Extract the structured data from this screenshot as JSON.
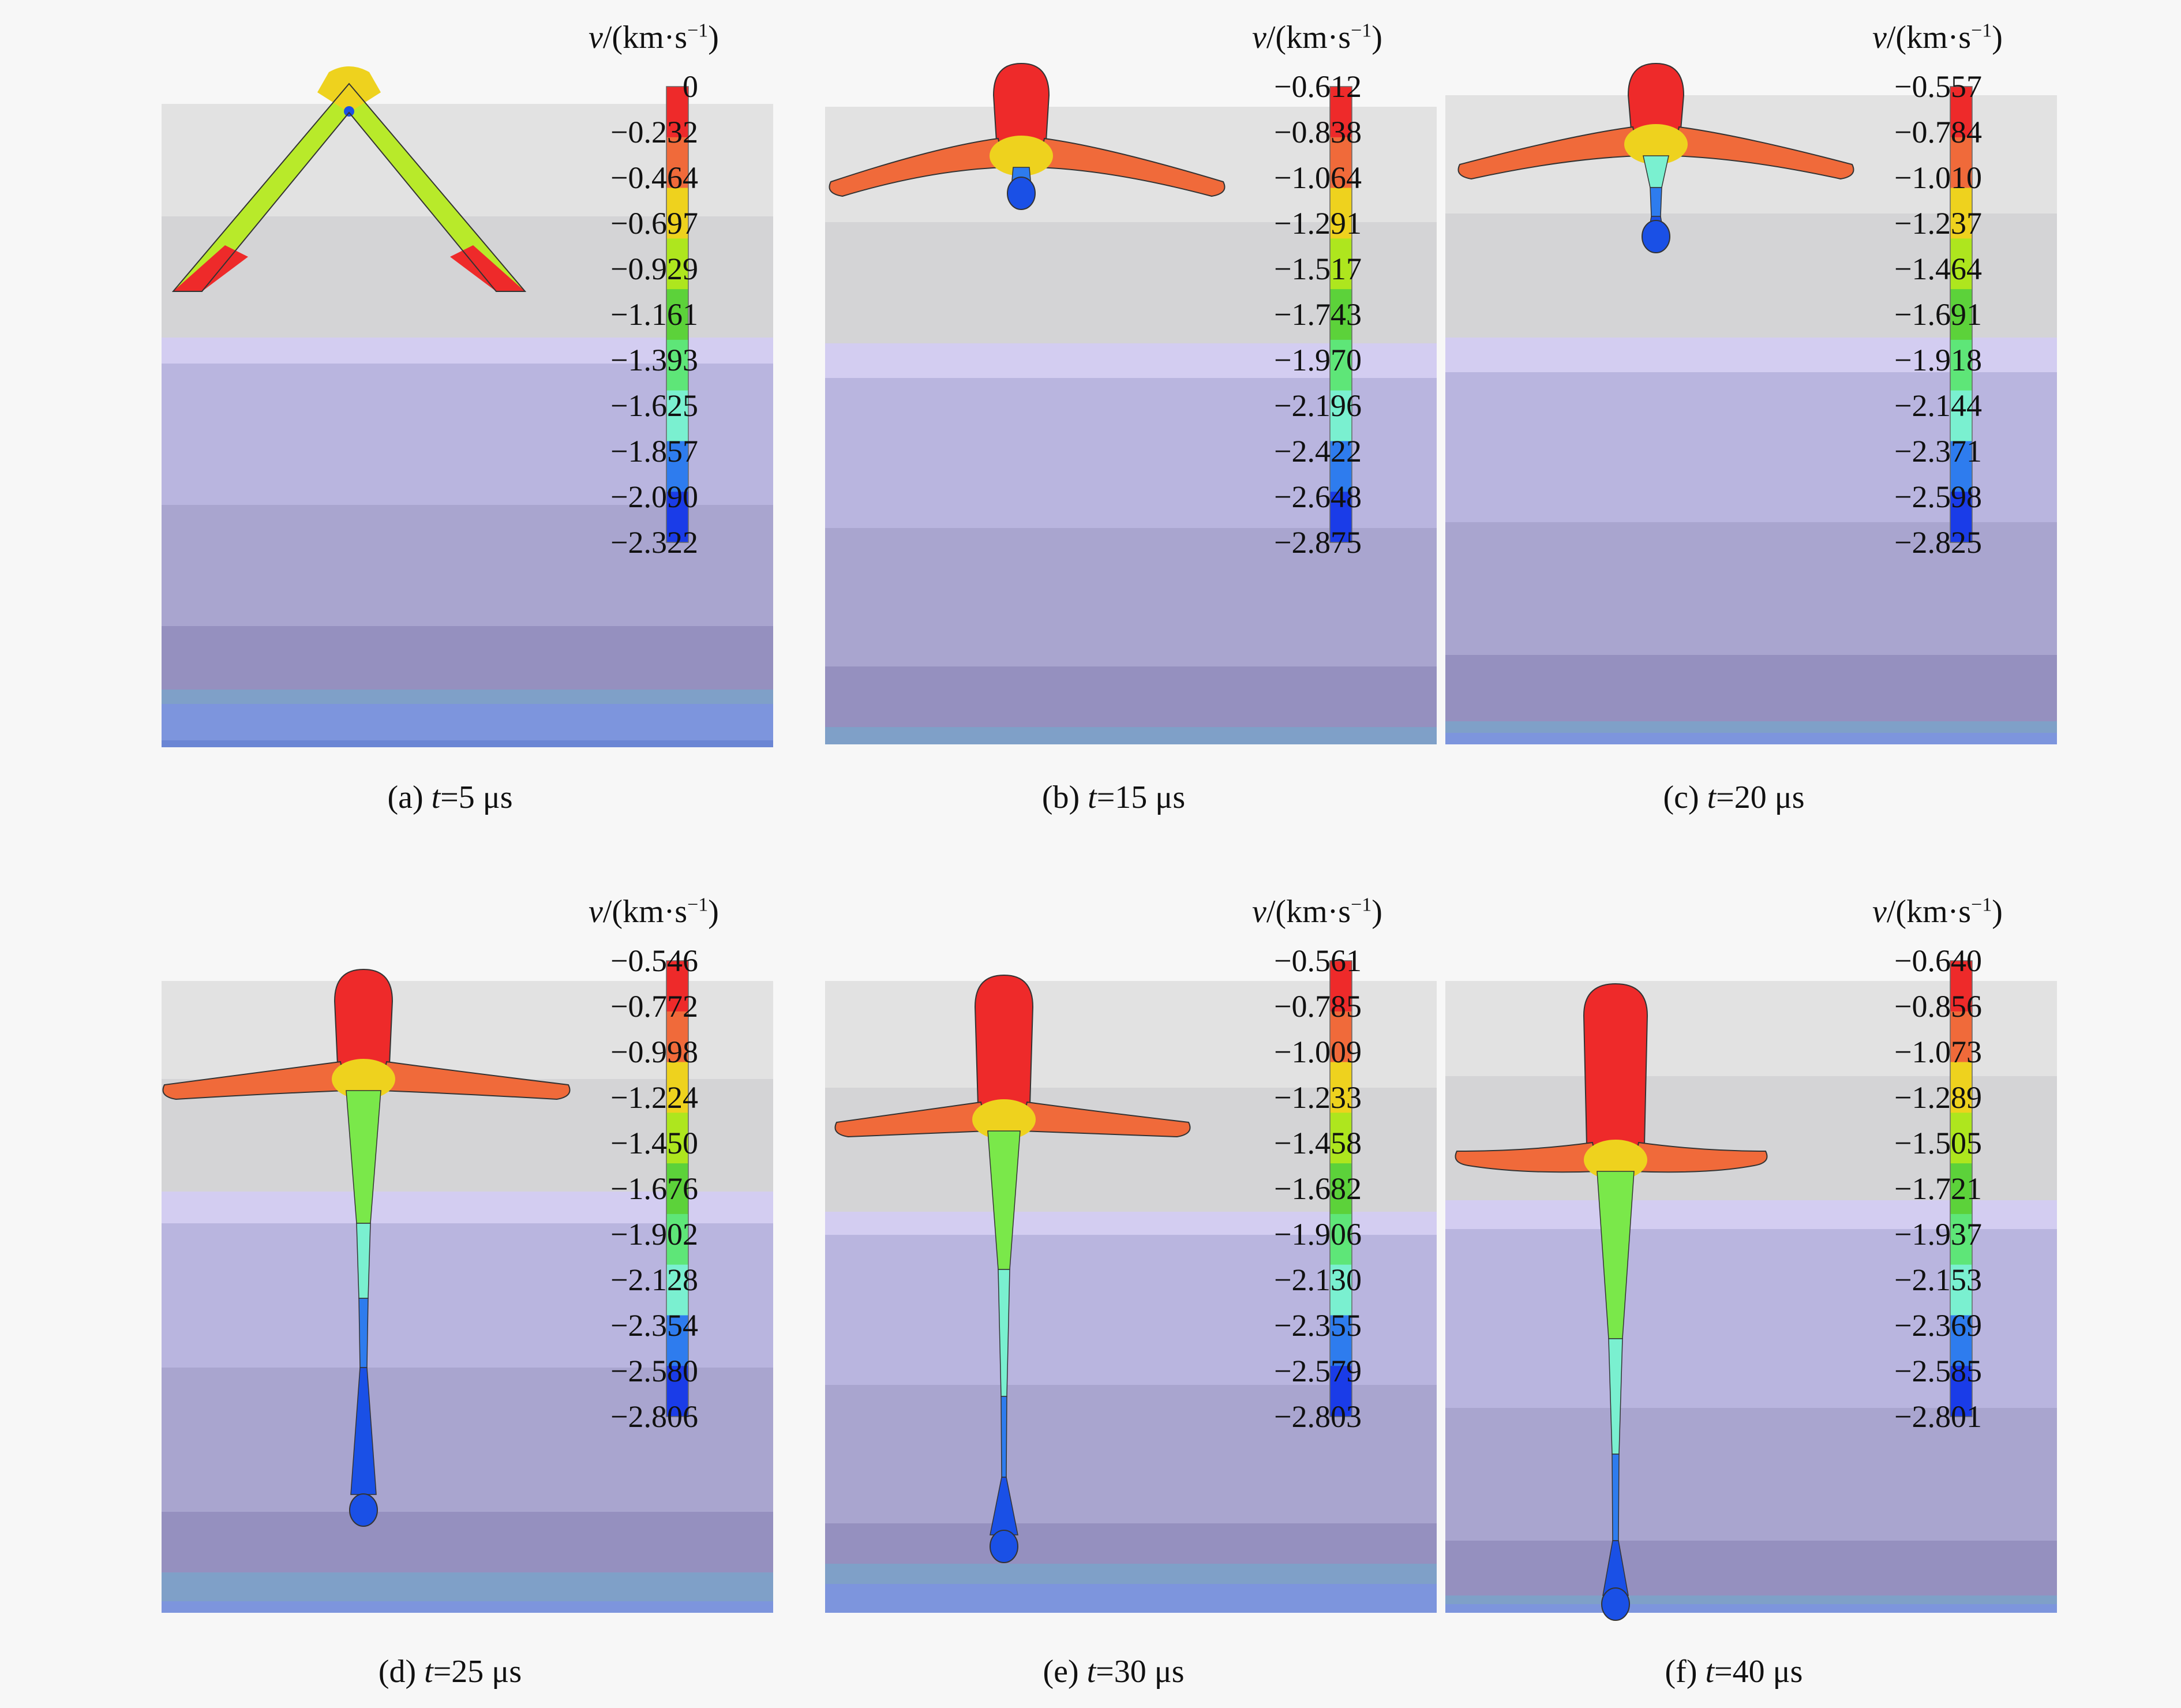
{
  "palette": {
    "legend_colors": [
      "#ee2a2a",
      "#f06a3a",
      "#eed21e",
      "#aee61e",
      "#5cd23a",
      "#5ee678",
      "#7af0d0",
      "#2e7cee",
      "#1a3ce8"
    ],
    "jet_tail_color": "#1a50e6",
    "jet_head_color": "#ee2a2a"
  },
  "panels": [
    {
      "label": "(a)",
      "t_symbol": "t",
      "t_value": "=5 μs",
      "unit_symbol": "v",
      "unit_text": "/(km·s",
      "unit_exp": "−1",
      "unit_close": ")",
      "ticks": [
        "0",
        "−0.232",
        "−0.464",
        "−0.697",
        "−0.929",
        "−1.161",
        "−1.393",
        "−1.625",
        "−1.857",
        "−2.090",
        "−2.322"
      ],
      "stage": "liner"
    },
    {
      "label": "(b)",
      "t_symbol": "t",
      "t_value": "=15 μs",
      "unit_symbol": "v",
      "unit_text": "/(km·s",
      "unit_exp": "−1",
      "unit_close": ")",
      "ticks": [
        "−0.612",
        "−0.838",
        "−1.064",
        "−1.291",
        "−1.517",
        "−1.743",
        "−1.970",
        "−2.196",
        "−2.422",
        "−2.648",
        "−2.875"
      ],
      "stage": "early"
    },
    {
      "label": "(c)",
      "t_symbol": "t",
      "t_value": "=20 μs",
      "unit_symbol": "v",
      "unit_text": "/(km·s",
      "unit_exp": "−1",
      "unit_close": ")",
      "ticks": [
        "−0.557",
        "−0.784",
        "−1.010",
        "−1.237",
        "−1.464",
        "−1.691",
        "−1.918",
        "−2.144",
        "−2.371",
        "−2.598",
        "−2.825"
      ],
      "stage": "mid"
    },
    {
      "label": "(d)",
      "t_symbol": "t",
      "t_value": "=25 μs",
      "unit_symbol": "v",
      "unit_text": "/(km·s",
      "unit_exp": "−1",
      "unit_close": ")",
      "ticks": [
        "−0.546",
        "−0.772",
        "−0.998",
        "−1.224",
        "−1.450",
        "−1.676",
        "−1.902",
        "−2.128",
        "−2.354",
        "−2.580",
        "−2.806"
      ],
      "stage": "late1"
    },
    {
      "label": "(e)",
      "t_symbol": "t",
      "t_value": "=30 μs",
      "unit_symbol": "v",
      "unit_text": "/(km·s",
      "unit_exp": "−1",
      "unit_close": ")",
      "ticks": [
        "−0.561",
        "−0.785",
        "−1.009",
        "−1.233",
        "−1.458",
        "−1.682",
        "−1.906",
        "−2.130",
        "−2.355",
        "−2.579",
        "−2.803"
      ],
      "stage": "late2"
    },
    {
      "label": "(f)",
      "t_symbol": "t",
      "t_value": "=40 μs",
      "unit_symbol": "v",
      "unit_text": "/(km·s",
      "unit_exp": "−1",
      "unit_close": ")",
      "ticks": [
        "−0.640",
        "−0.856",
        "−1.073",
        "−1.289",
        "−1.505",
        "−1.721",
        "−1.937",
        "−2.153",
        "−2.369",
        "−2.585",
        "−2.801"
      ],
      "stage": "late3"
    }
  ]
}
